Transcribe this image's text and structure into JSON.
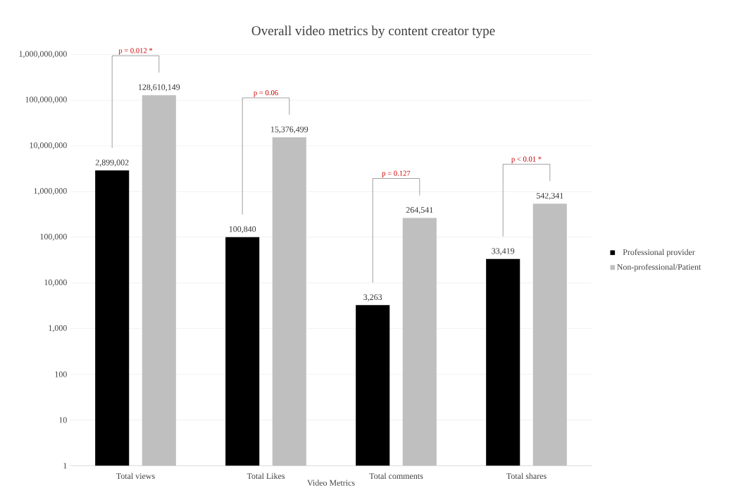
{
  "chart_data": {
    "type": "bar",
    "title": "Overall video metrics by content creator type",
    "xlabel": "Video Metrics",
    "categories": [
      "Total views",
      "Total Likes",
      "Total comments",
      "Total shares"
    ],
    "series": [
      {
        "name": "Professional provider",
        "color": "#000000",
        "values": [
          2899002,
          100840,
          3263,
          33419
        ],
        "value_labels": [
          "2,899,002",
          "100,840",
          "3,263",
          "33,419"
        ]
      },
      {
        "name": "Non-professional/Patient",
        "color": "#bfbfbf",
        "values": [
          128610149,
          15376499,
          264541,
          542341
        ],
        "value_labels": [
          "128,610,149",
          "15,376,499",
          "264,541",
          "542,341"
        ]
      }
    ],
    "log": "y",
    "ylim": [
      1,
      1000000000
    ],
    "yticks": [
      {
        "value": 1,
        "label": "1"
      },
      {
        "value": 10,
        "label": "10"
      },
      {
        "value": 100,
        "label": "100"
      },
      {
        "value": 1000,
        "label": "1,000"
      },
      {
        "value": 10000,
        "label": "10,000"
      },
      {
        "value": 100000,
        "label": "100,000"
      },
      {
        "value": 1000000,
        "label": "1,000,000"
      },
      {
        "value": 10000000,
        "label": "10,000,000"
      },
      {
        "value": 100000000,
        "label": "100,000,000"
      },
      {
        "value": 1000000000,
        "label": "1,000,000,000"
      }
    ],
    "grid": "y",
    "legend": "right",
    "annotations": [
      "p = 0.012 *",
      "p = 0.06",
      "p = 0.127",
      "p < 0.01 *"
    ]
  }
}
